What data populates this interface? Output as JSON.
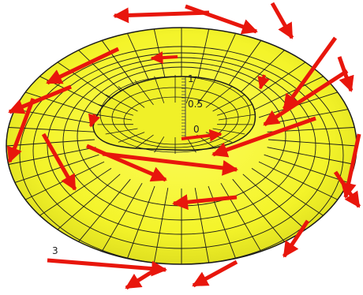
{
  "figure": {
    "description_shown": false,
    "colors": {
      "torus_fill": "#f4f42a",
      "torus_fill_shadow": "#d6d61a",
      "mesh_line": "#1a1a1a",
      "arrow": "#e8160c",
      "axis": "#444444"
    },
    "axis_ticks": [
      {
        "label": "1"
      },
      {
        "label": "0.5"
      },
      {
        "label": "0"
      }
    ],
    "corner_label": "3"
  }
}
